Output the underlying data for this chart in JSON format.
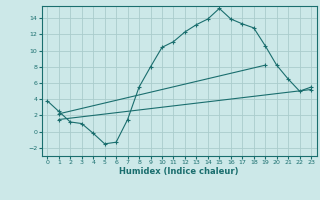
{
  "xlabel": "Humidex (Indice chaleur)",
  "bg_color": "#cce8e8",
  "grid_color": "#aacccc",
  "line_color": "#1a6e6e",
  "xlim": [
    -0.5,
    23.5
  ],
  "ylim": [
    -3.0,
    15.5
  ],
  "xticks": [
    0,
    1,
    2,
    3,
    4,
    5,
    6,
    7,
    8,
    9,
    10,
    11,
    12,
    13,
    14,
    15,
    16,
    17,
    18,
    19,
    20,
    21,
    22,
    23
  ],
  "yticks": [
    -2,
    0,
    2,
    4,
    6,
    8,
    10,
    12,
    14
  ],
  "line1_x": [
    0,
    1,
    2,
    3,
    4,
    5,
    6,
    7,
    8,
    9,
    10,
    11,
    12,
    13,
    14,
    15,
    16,
    17,
    18,
    19,
    20,
    21,
    22,
    23
  ],
  "line1_y": [
    3.8,
    2.5,
    1.2,
    1.0,
    -0.2,
    -1.5,
    -1.3,
    1.5,
    5.5,
    8.0,
    10.4,
    11.1,
    12.3,
    13.2,
    13.9,
    15.2,
    13.9,
    13.3,
    12.8,
    10.6,
    8.2,
    6.5,
    5.0,
    5.5
  ],
  "line2_x": [
    1,
    19
  ],
  "line2_y": [
    2.2,
    8.2
  ],
  "line3_x": [
    1,
    23
  ],
  "line3_y": [
    1.5,
    5.2
  ]
}
